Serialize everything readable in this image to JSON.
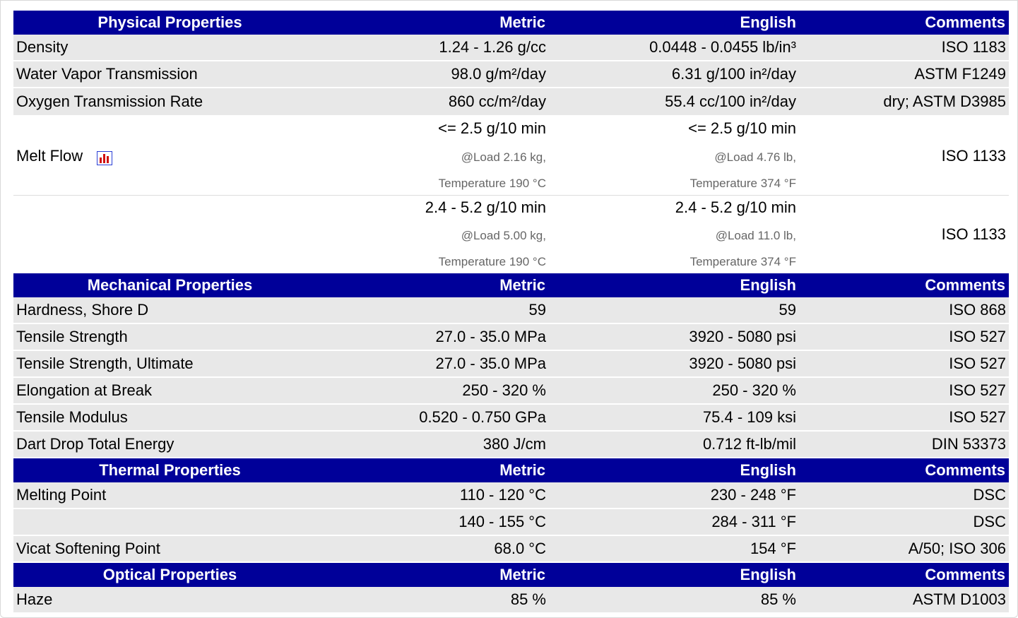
{
  "sections": [
    {
      "title": "Physical Properties",
      "metric": "Metric",
      "english": "English",
      "comments": "Comments",
      "rows": [
        {
          "name": "Density",
          "metric": "1.24 - 1.26 g/cc",
          "english": "0.0448 - 0.0455 lb/in³",
          "comment": "ISO 1183"
        },
        {
          "name": "Water Vapor Transmission",
          "metric": "98.0 g/m²/day",
          "english": "6.31 g/100 in²/day",
          "comment": "ASTM F1249"
        },
        {
          "name": "Oxygen Transmission Rate",
          "metric": "860 cc/m²/day",
          "english": "55.4 cc/100 in²/day",
          "comment": "dry; ASTM D3985"
        }
      ],
      "melt_flow": {
        "name": "Melt Flow",
        "icon": "chart-icon",
        "entries": [
          {
            "metric": "<= 2.5 g/10 min",
            "metric_load": "@Load 2.16 kg,",
            "metric_temp": "Temperature 190 °C",
            "english": "<= 2.5 g/10 min",
            "english_load": "@Load 4.76 lb,",
            "english_temp": "Temperature 374 °F",
            "comment": "ISO 1133"
          },
          {
            "metric": "2.4 - 5.2 g/10 min",
            "metric_load": "@Load 5.00 kg,",
            "metric_temp": "Temperature 190 °C",
            "english": "2.4 - 5.2 g/10 min",
            "english_load": "@Load 11.0 lb,",
            "english_temp": "Temperature 374 °F",
            "comment": "ISO 1133"
          }
        ]
      }
    },
    {
      "title": "Mechanical Properties",
      "metric": "Metric",
      "english": "English",
      "comments": "Comments",
      "rows": [
        {
          "name": "Hardness, Shore D",
          "metric": "59",
          "english": "59",
          "comment": "ISO 868"
        },
        {
          "name": "Tensile Strength",
          "metric": "27.0 - 35.0 MPa",
          "english": "3920 - 5080 psi",
          "comment": "ISO 527"
        },
        {
          "name": "Tensile Strength, Ultimate",
          "metric": "27.0 - 35.0 MPa",
          "english": "3920 - 5080 psi",
          "comment": "ISO 527"
        },
        {
          "name": "Elongation at Break",
          "metric": "250 - 320 %",
          "english": "250 - 320 %",
          "comment": "ISO 527"
        },
        {
          "name": "Tensile Modulus",
          "metric": "0.520 - 0.750 GPa",
          "english": "75.4 - 109 ksi",
          "comment": "ISO 527"
        },
        {
          "name": "Dart Drop Total Energy",
          "metric": "380 J/cm",
          "english": "0.712 ft-lb/mil",
          "comment": "DIN 53373"
        }
      ]
    },
    {
      "title": "Thermal Properties",
      "metric": "Metric",
      "english": "English",
      "comments": "Comments",
      "rows": [
        {
          "name": "Melting Point",
          "metric": "110 - 120 °C",
          "english": "230 - 248 °F",
          "comment": "DSC"
        },
        {
          "name": "",
          "metric": "140 - 155 °C",
          "english": "284 - 311 °F",
          "comment": "DSC"
        },
        {
          "name": "Vicat Softening Point",
          "metric": "68.0 °C",
          "english": "154 °F",
          "comment": "A/50; ISO 306"
        }
      ]
    },
    {
      "title": "Optical Properties",
      "metric": "Metric",
      "english": "English",
      "comments": "Comments",
      "rows": [
        {
          "name": "Haze",
          "metric": "85 %",
          "english": "85 %",
          "comment": "ASTM D1003"
        }
      ]
    }
  ]
}
